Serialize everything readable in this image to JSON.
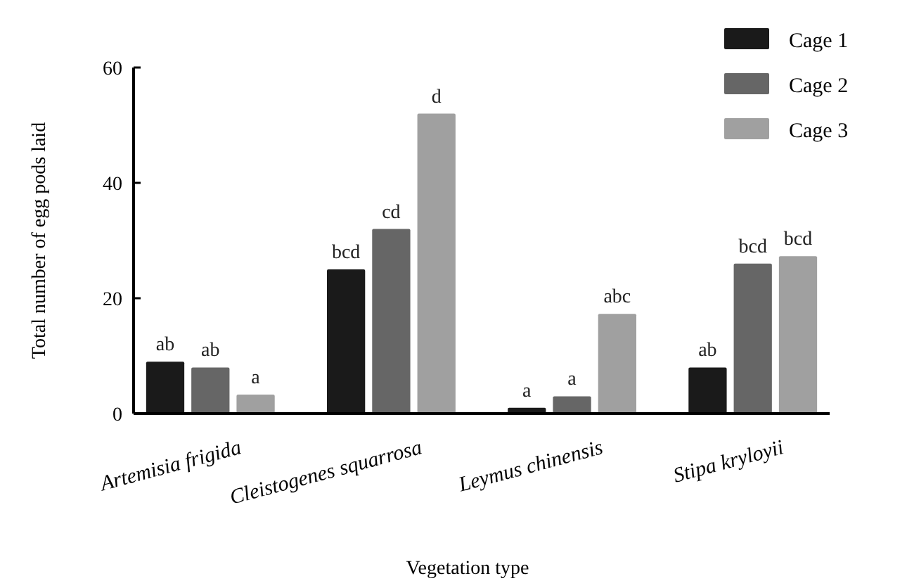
{
  "chart_data": {
    "type": "bar",
    "xlabel": "Vegetation type",
    "ylabel": "Total number of egg pods laid",
    "categories": [
      "Artemisia frigida",
      "Cleistogenes squarrosa",
      "Leymus chinensis",
      "Stipa kryloyii"
    ],
    "series": [
      {
        "name": "Cage 1",
        "color": "#1a1a1a",
        "values": [
          9,
          25,
          1,
          8
        ],
        "value_labels": [
          "ab",
          "bcd",
          "a",
          "ab"
        ]
      },
      {
        "name": "Cage 2",
        "color": "#666666",
        "values": [
          8,
          32,
          3,
          26
        ],
        "value_labels": [
          "ab",
          "cd",
          "a",
          "bcd"
        ]
      },
      {
        "name": "Cage 3",
        "color": "#a0a0a0",
        "values": [
          3.3,
          52,
          17.3,
          27.3
        ],
        "value_labels": [
          "a",
          "d",
          "abc",
          "bcd"
        ]
      }
    ],
    "ylim": [
      0,
      60
    ],
    "yticks": [
      0,
      20,
      40,
      60
    ],
    "grid": false,
    "legend": "top right"
  }
}
